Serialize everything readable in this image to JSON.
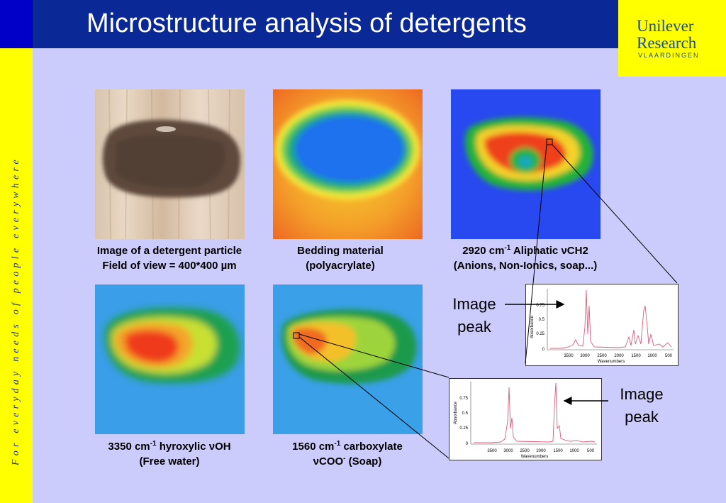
{
  "header": {
    "title": "Microstructure analysis of detergents",
    "logo_line1": "Unilever",
    "logo_line2": "Research",
    "logo_line3": "VLAARDINGEN"
  },
  "side_text": "For everyday needs of people everywhere",
  "images": [
    {
      "caption_line1": "Image of a detergent particle",
      "caption_line2": "Field of view = 400*400 µm"
    },
    {
      "caption_line1": "Bedding material",
      "caption_line2": "(polyacrylate)"
    },
    {
      "caption_line1_pre": "2920 cm",
      "caption_line1_sup": "-1",
      "caption_line1_post": " Aliphatic νCH2",
      "caption_line2": "(Anions, Non-Ionics, soap...)"
    },
    {
      "caption_line1_pre": "3350 cm",
      "caption_line1_sup": "-1",
      "caption_line1_post": " hyroxylic νOH",
      "caption_line2": "(Free water)"
    },
    {
      "caption_line1_pre": "1560 cm",
      "caption_line1_sup": "-1",
      "caption_line1_post": " carboxylate",
      "caption_line2_pre": "νCOO",
      "caption_line2_sup": "-",
      "caption_line2_post": " (Soap)"
    }
  ],
  "spectra": [
    {
      "ylabel": "Absorbance",
      "xlabel": "Wavenumbers",
      "yticks": [
        "0.75",
        "0.5",
        "0.25",
        "0"
      ],
      "xticks": [
        "3500",
        "3000",
        "2500",
        "2000",
        "1500",
        "1000",
        "500"
      ]
    },
    {
      "ylabel": "Absorbance",
      "xlabel": "Wavenumbers",
      "yticks": [
        "0.75",
        "0.5",
        "0.25",
        "0"
      ],
      "xticks": [
        "3500",
        "3000",
        "2500",
        "2000",
        "1500",
        "1000",
        "500"
      ]
    }
  ],
  "labels": {
    "image_peak_1_line1": "Image",
    "image_peak_1_line2": "peak",
    "image_peak_2_line1": "Image",
    "image_peak_2_line2": "peak"
  },
  "colors": {
    "title_bar": "#0a2896",
    "accent_yellow": "#ffff00",
    "background": "#ccccfc",
    "spectrum_line": "#e05a7a"
  }
}
